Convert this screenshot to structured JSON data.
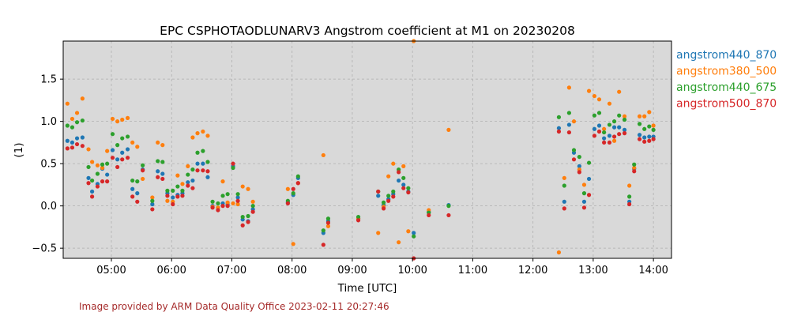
{
  "chart_data": {
    "type": "scatter",
    "title": "EPC CSPHOTAODLUNARV3 Angstrom coefficient at M1 on 20230208",
    "xlabel": "Time [UTC]",
    "ylabel": "(1)",
    "x_units": "hours UTC",
    "xlim": [
      4.2,
      14.3
    ],
    "ylim": [
      -0.62,
      1.95
    ],
    "xticks": [
      5,
      6,
      7,
      8,
      9,
      10,
      11,
      12,
      13,
      14
    ],
    "xtick_labels": [
      "05:00",
      "06:00",
      "07:00",
      "08:00",
      "09:00",
      "10:00",
      "11:00",
      "12:00",
      "13:00",
      "14:00"
    ],
    "yticks": [
      -0.5,
      0.0,
      0.5,
      1.0,
      1.5
    ],
    "ytick_labels": [
      "−0.5",
      "0.0",
      "0.5",
      "1.0",
      "1.5"
    ],
    "grid": true,
    "legend_position": "right, outside plot",
    "series": [
      {
        "name": "angstrom440_870",
        "color": "#1f77b4",
        "x": [
          4.27,
          4.35,
          4.43,
          4.52,
          4.62,
          4.68,
          4.77,
          4.85,
          4.93,
          5.02,
          5.1,
          5.18,
          5.27,
          5.35,
          5.43,
          5.52,
          5.68,
          5.77,
          5.85,
          5.93,
          6.02,
          6.1,
          6.18,
          6.27,
          6.35,
          6.43,
          6.52,
          6.6,
          6.68,
          6.77,
          6.85,
          6.93,
          7.02,
          7.1,
          7.18,
          7.27,
          7.35,
          7.93,
          8.02,
          8.1,
          8.52,
          8.6,
          9.1,
          9.43,
          9.52,
          9.6,
          9.68,
          9.77,
          9.85,
          9.93,
          10.02,
          10.27,
          10.6,
          12.43,
          12.52,
          12.6,
          12.68,
          12.77,
          12.85,
          12.93,
          13.02,
          13.1,
          13.18,
          13.27,
          13.35,
          13.43,
          13.52,
          13.6,
          13.68,
          13.77,
          13.85,
          13.93,
          14.0
        ],
        "y": [
          0.77,
          0.75,
          0.8,
          0.81,
          0.33,
          0.17,
          0.26,
          0.44,
          0.37,
          0.66,
          0.55,
          0.63,
          0.67,
          0.2,
          0.15,
          0.43,
          0.02,
          0.41,
          0.38,
          0.15,
          0.1,
          0.13,
          0.15,
          0.28,
          0.3,
          0.5,
          0.5,
          0.34,
          0.0,
          -0.02,
          0.03,
          0.02,
          0.47,
          0.1,
          -0.16,
          -0.18,
          -0.04,
          0.04,
          0.13,
          0.33,
          -0.32,
          -0.18,
          -0.15,
          0.12,
          0.01,
          0.08,
          0.14,
          0.3,
          0.25,
          0.17,
          -0.32,
          -0.07,
          0.01,
          0.92,
          0.05,
          0.96,
          0.63,
          0.47,
          0.05,
          0.32,
          0.91,
          0.95,
          0.8,
          0.83,
          0.93,
          0.93,
          0.9,
          0.05,
          0.44,
          0.84,
          0.81,
          0.82,
          0.82
        ]
      },
      {
        "name": "angstrom380_500",
        "color": "#ff7f0e",
        "x": [
          4.27,
          4.35,
          4.43,
          4.52,
          4.62,
          4.68,
          4.77,
          4.85,
          4.93,
          5.02,
          5.1,
          5.18,
          5.27,
          5.35,
          5.43,
          5.52,
          5.68,
          5.77,
          5.85,
          5.93,
          6.02,
          6.1,
          6.18,
          6.27,
          6.35,
          6.43,
          6.52,
          6.6,
          6.68,
          6.77,
          6.85,
          6.93,
          7.02,
          7.1,
          7.18,
          7.27,
          7.35,
          7.93,
          8.02,
          8.1,
          8.52,
          8.6,
          9.1,
          9.43,
          9.52,
          9.6,
          9.68,
          9.77,
          9.85,
          9.93,
          10.02,
          10.27,
          10.6,
          12.43,
          12.52,
          12.6,
          12.68,
          12.77,
          12.85,
          12.93,
          13.02,
          13.1,
          13.18,
          13.27,
          13.35,
          13.43,
          13.52,
          13.6,
          13.68,
          13.77,
          13.85,
          13.93,
          14.0
        ],
        "y": [
          1.21,
          1.03,
          1.1,
          1.27,
          0.67,
          0.52,
          0.48,
          0.45,
          0.65,
          1.03,
          1.0,
          1.02,
          1.04,
          0.75,
          0.7,
          0.32,
          0.1,
          0.75,
          0.72,
          0.06,
          0.05,
          0.36,
          0.26,
          0.47,
          0.81,
          0.86,
          0.88,
          0.83,
          -0.01,
          -0.02,
          0.29,
          0.04,
          0.03,
          0.02,
          0.23,
          0.2,
          0.05,
          0.2,
          -0.45,
          0.27,
          0.6,
          -0.24,
          -0.15,
          -0.32,
          -0.01,
          0.35,
          0.5,
          -0.43,
          0.47,
          -0.3,
          1.95,
          -0.05,
          0.9,
          -0.55,
          0.33,
          1.4,
          1.0,
          0.43,
          0.25,
          1.36,
          1.3,
          1.26,
          0.91,
          1.21,
          0.77,
          1.35,
          1.06,
          0.24,
          0.45,
          1.06,
          1.06,
          1.11,
          0.95
        ]
      },
      {
        "name": "angstrom440_675",
        "color": "#2ca02c",
        "x": [
          4.27,
          4.35,
          4.43,
          4.52,
          4.62,
          4.68,
          4.77,
          4.85,
          4.93,
          5.02,
          5.1,
          5.18,
          5.27,
          5.35,
          5.43,
          5.52,
          5.68,
          5.77,
          5.85,
          5.93,
          6.02,
          6.1,
          6.18,
          6.27,
          6.35,
          6.43,
          6.52,
          6.6,
          6.68,
          6.77,
          6.85,
          6.93,
          7.02,
          7.1,
          7.18,
          7.27,
          7.35,
          7.93,
          8.02,
          8.1,
          8.52,
          8.6,
          9.1,
          9.43,
          9.52,
          9.6,
          9.68,
          9.77,
          9.85,
          9.93,
          10.02,
          10.27,
          10.6,
          12.43,
          12.52,
          12.6,
          12.68,
          12.77,
          12.85,
          12.93,
          13.02,
          13.1,
          13.18,
          13.27,
          13.35,
          13.43,
          13.52,
          13.6,
          13.68,
          13.77,
          13.85,
          13.93,
          14.0
        ],
        "y": [
          0.95,
          0.93,
          0.99,
          1.01,
          0.46,
          0.3,
          0.38,
          0.49,
          0.5,
          0.85,
          0.72,
          0.8,
          0.82,
          0.3,
          0.29,
          0.48,
          0.06,
          0.53,
          0.52,
          0.18,
          0.18,
          0.23,
          0.18,
          0.37,
          0.43,
          0.63,
          0.65,
          0.52,
          0.05,
          0.03,
          0.12,
          0.14,
          0.45,
          0.14,
          -0.13,
          -0.12,
          0.0,
          0.06,
          0.15,
          0.35,
          -0.29,
          -0.15,
          -0.13,
          0.17,
          0.04,
          0.12,
          0.17,
          0.43,
          0.33,
          0.21,
          -0.36,
          -0.08,
          0.0,
          1.05,
          0.24,
          1.1,
          0.66,
          0.58,
          0.15,
          0.51,
          1.07,
          1.1,
          0.87,
          0.96,
          1.0,
          1.07,
          1.02,
          0.11,
          0.49,
          0.97,
          0.91,
          0.94,
          0.9
        ]
      },
      {
        "name": "angstrom500_870",
        "color": "#d62728",
        "x": [
          4.27,
          4.35,
          4.43,
          4.52,
          4.62,
          4.68,
          4.77,
          4.85,
          4.93,
          5.02,
          5.1,
          5.18,
          5.27,
          5.35,
          5.43,
          5.52,
          5.68,
          5.77,
          5.85,
          5.93,
          6.02,
          6.1,
          6.18,
          6.27,
          6.35,
          6.43,
          6.52,
          6.6,
          6.68,
          6.77,
          6.85,
          6.93,
          7.02,
          7.1,
          7.18,
          7.27,
          7.35,
          7.93,
          8.02,
          8.1,
          8.52,
          8.6,
          9.1,
          9.43,
          9.52,
          9.6,
          9.68,
          9.77,
          9.85,
          9.93,
          10.02,
          10.27,
          10.6,
          12.43,
          12.52,
          12.6,
          12.68,
          12.77,
          12.85,
          12.93,
          13.02,
          13.1,
          13.18,
          13.27,
          13.35,
          13.43,
          13.52,
          13.6,
          13.68,
          13.77,
          13.85,
          13.93,
          14.0
        ],
        "y": [
          0.68,
          0.69,
          0.73,
          0.71,
          0.27,
          0.11,
          0.23,
          0.29,
          0.29,
          0.57,
          0.46,
          0.55,
          0.57,
          0.11,
          0.05,
          0.42,
          -0.04,
          0.34,
          0.32,
          0.12,
          0.02,
          0.11,
          0.12,
          0.24,
          0.21,
          0.42,
          0.42,
          0.41,
          -0.02,
          -0.05,
          0.0,
          0.0,
          0.5,
          0.06,
          -0.23,
          -0.19,
          -0.07,
          0.03,
          0.2,
          0.27,
          -0.46,
          -0.2,
          -0.17,
          0.17,
          -0.03,
          0.06,
          0.11,
          0.4,
          0.21,
          0.16,
          -0.62,
          -0.11,
          -0.11,
          0.88,
          -0.03,
          0.87,
          0.55,
          0.4,
          -0.02,
          0.13,
          0.83,
          0.88,
          0.75,
          0.75,
          0.82,
          0.85,
          0.86,
          0.02,
          0.41,
          0.79,
          0.76,
          0.77,
          0.79
        ]
      }
    ]
  },
  "footer": {
    "credit": "Image provided by ARM Data Quality Office 2023-02-11 20:27:46"
  }
}
